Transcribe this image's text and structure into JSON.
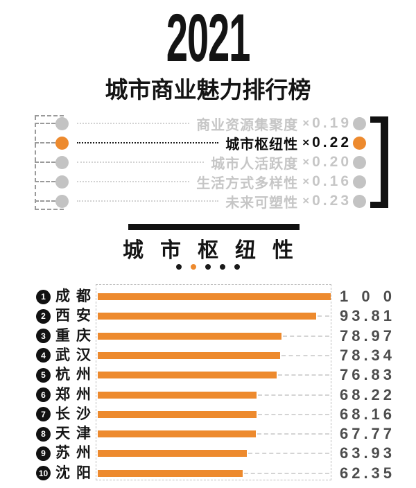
{
  "header": {
    "year": "2021",
    "title": "城市商业魅力排行榜"
  },
  "legend": {
    "multiply_sign": "×",
    "items": [
      {
        "label": "商业资源集聚度",
        "weight": "0.19",
        "active": false
      },
      {
        "label": "城市枢纽性",
        "weight": "0.22",
        "active": true
      },
      {
        "label": "城市人活跃度",
        "weight": "0.20",
        "active": false
      },
      {
        "label": "生活方式多样性",
        "weight": "0.16",
        "active": false
      },
      {
        "label": "未来可塑性",
        "weight": "0.23",
        "active": false
      }
    ]
  },
  "section": {
    "title": "城市枢纽性",
    "dots_count": 5,
    "active_dot_index": 1
  },
  "chart_data": {
    "type": "bar",
    "orientation": "horizontal",
    "title": "城市枢纽性",
    "xlim": [
      0,
      100
    ],
    "grid": false,
    "ranks": [
      "1",
      "2",
      "3",
      "4",
      "5",
      "6",
      "7",
      "8",
      "9",
      "10"
    ],
    "categories": [
      "成都",
      "西安",
      "重庆",
      "武汉",
      "杭州",
      "郑州",
      "长沙",
      "天津",
      "苏州",
      "沈阳"
    ],
    "values": [
      100,
      93.81,
      78.97,
      78.34,
      76.83,
      68.22,
      68.16,
      67.77,
      63.93,
      62.35
    ],
    "value_labels": [
      "100",
      "93.81",
      "78.97",
      "78.34",
      "76.83",
      "68.22",
      "68.16",
      "67.77",
      "63.93",
      "62.35"
    ],
    "bar_color": "#ed8a2e"
  },
  "colors": {
    "accent": "#ed8a2e",
    "muted_gray": "#c6c6c6",
    "ink": "#111111",
    "value_text": "#4d4d4d"
  }
}
